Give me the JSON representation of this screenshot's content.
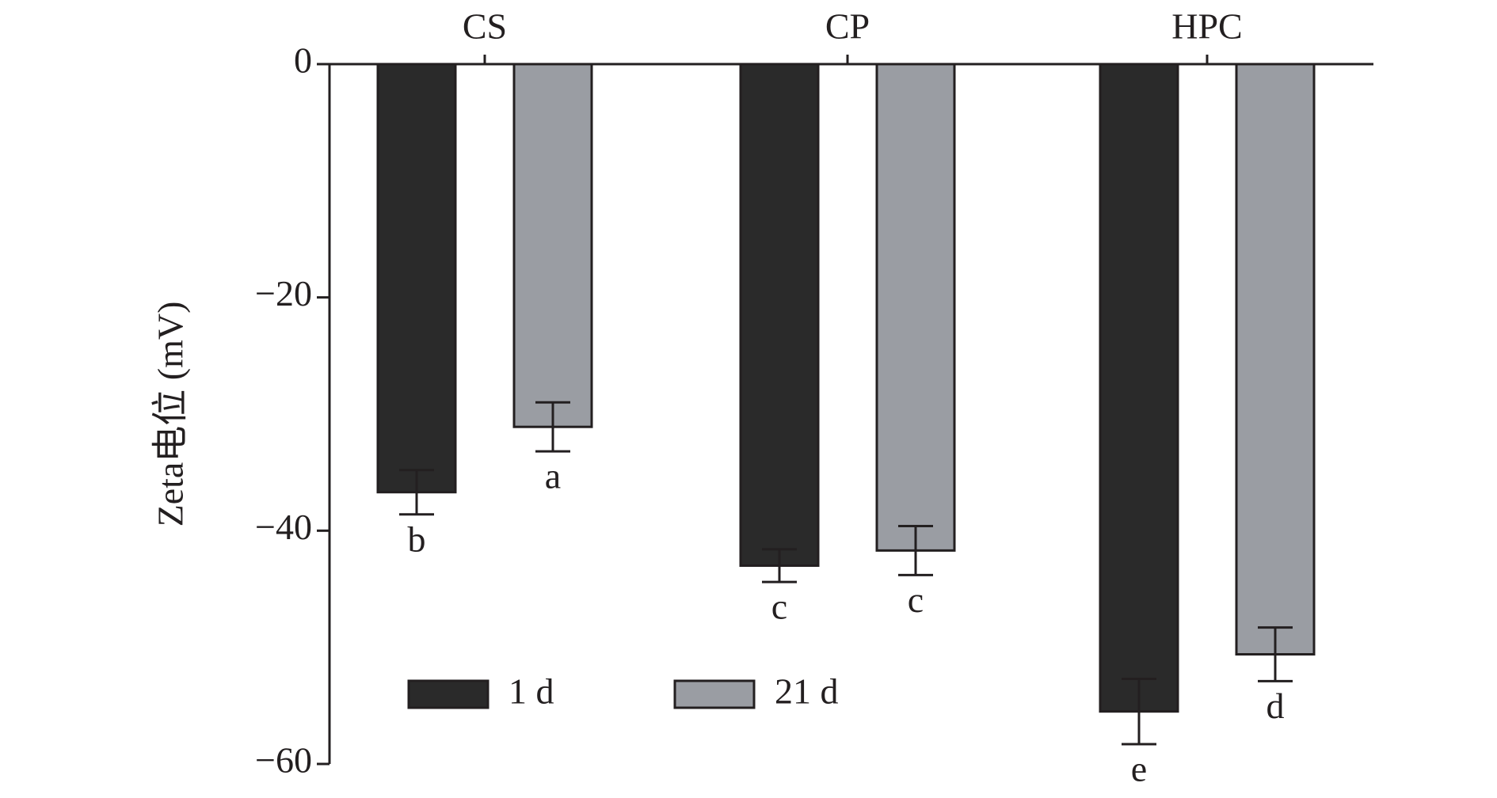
{
  "chart_data": {
    "type": "bar",
    "y_label": "Zeta电位 (mV)",
    "categories": [
      "CS",
      "CP",
      "HPC"
    ],
    "series": [
      {
        "name": "1 d",
        "color": "#2a2a2a",
        "values": [
          -36.7,
          -43.0,
          -55.5
        ],
        "errors": [
          1.9,
          1.4,
          2.8
        ],
        "letters": [
          "b",
          "c",
          "e"
        ]
      },
      {
        "name": "21 d",
        "color": "#9a9da3",
        "values": [
          -31.1,
          -41.7,
          -50.6
        ],
        "errors": [
          2.1,
          2.1,
          2.3
        ],
        "letters": [
          "a",
          "c",
          "d"
        ]
      }
    ],
    "ylim": [
      -60,
      0
    ],
    "yticks": [
      {
        "value": -60,
        "label": "−60"
      },
      {
        "value": -40,
        "label": "−40"
      },
      {
        "value": -20,
        "label": "−20"
      },
      0
    ],
    "grid": false
  }
}
